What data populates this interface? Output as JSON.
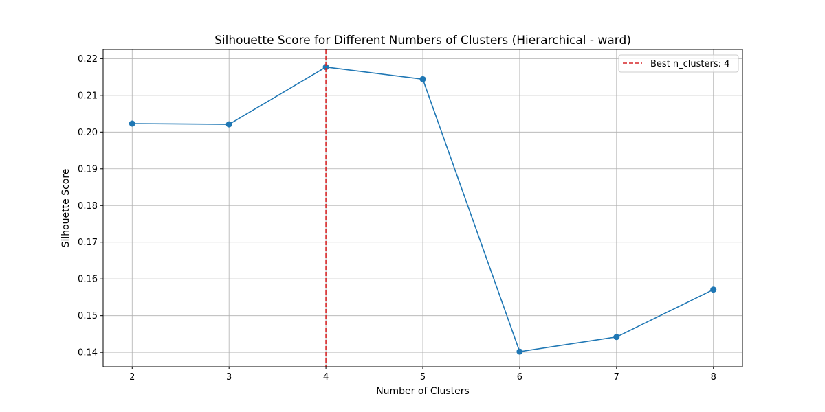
{
  "chart_data": {
    "type": "line",
    "title": "Silhouette Score for Different Numbers of Clusters (Hierarchical - ward)",
    "xlabel": "Number of Clusters",
    "ylabel": "Silhouette Score",
    "x": [
      2,
      3,
      4,
      5,
      6,
      7,
      8
    ],
    "series": [
      {
        "values": [
          0.2023,
          0.2021,
          0.2177,
          0.2144,
          0.1402,
          0.1442,
          0.1571
        ],
        "color": "#1f77b4",
        "marker": "circle"
      }
    ],
    "xticks": [
      2,
      3,
      4,
      5,
      6,
      7,
      8
    ],
    "xtick_labels": [
      "2",
      "3",
      "4",
      "5",
      "6",
      "7",
      "8"
    ],
    "yticks": [
      0.14,
      0.15,
      0.16,
      0.17,
      0.18,
      0.19,
      0.2,
      0.21,
      0.22
    ],
    "ytick_labels": [
      "0.14",
      "0.15",
      "0.16",
      "0.17",
      "0.18",
      "0.19",
      "0.20",
      "0.21",
      "0.22"
    ],
    "xlim": [
      1.7,
      8.3
    ],
    "ylim": [
      0.1361,
      0.2225
    ],
    "grid": true,
    "vline": {
      "x": 4,
      "color": "#d62728",
      "style": "dashed",
      "label": "Best n_clusters: 4"
    },
    "legend": {
      "position": "top-right",
      "entries": [
        "Best n_clusters: 4"
      ]
    }
  }
}
